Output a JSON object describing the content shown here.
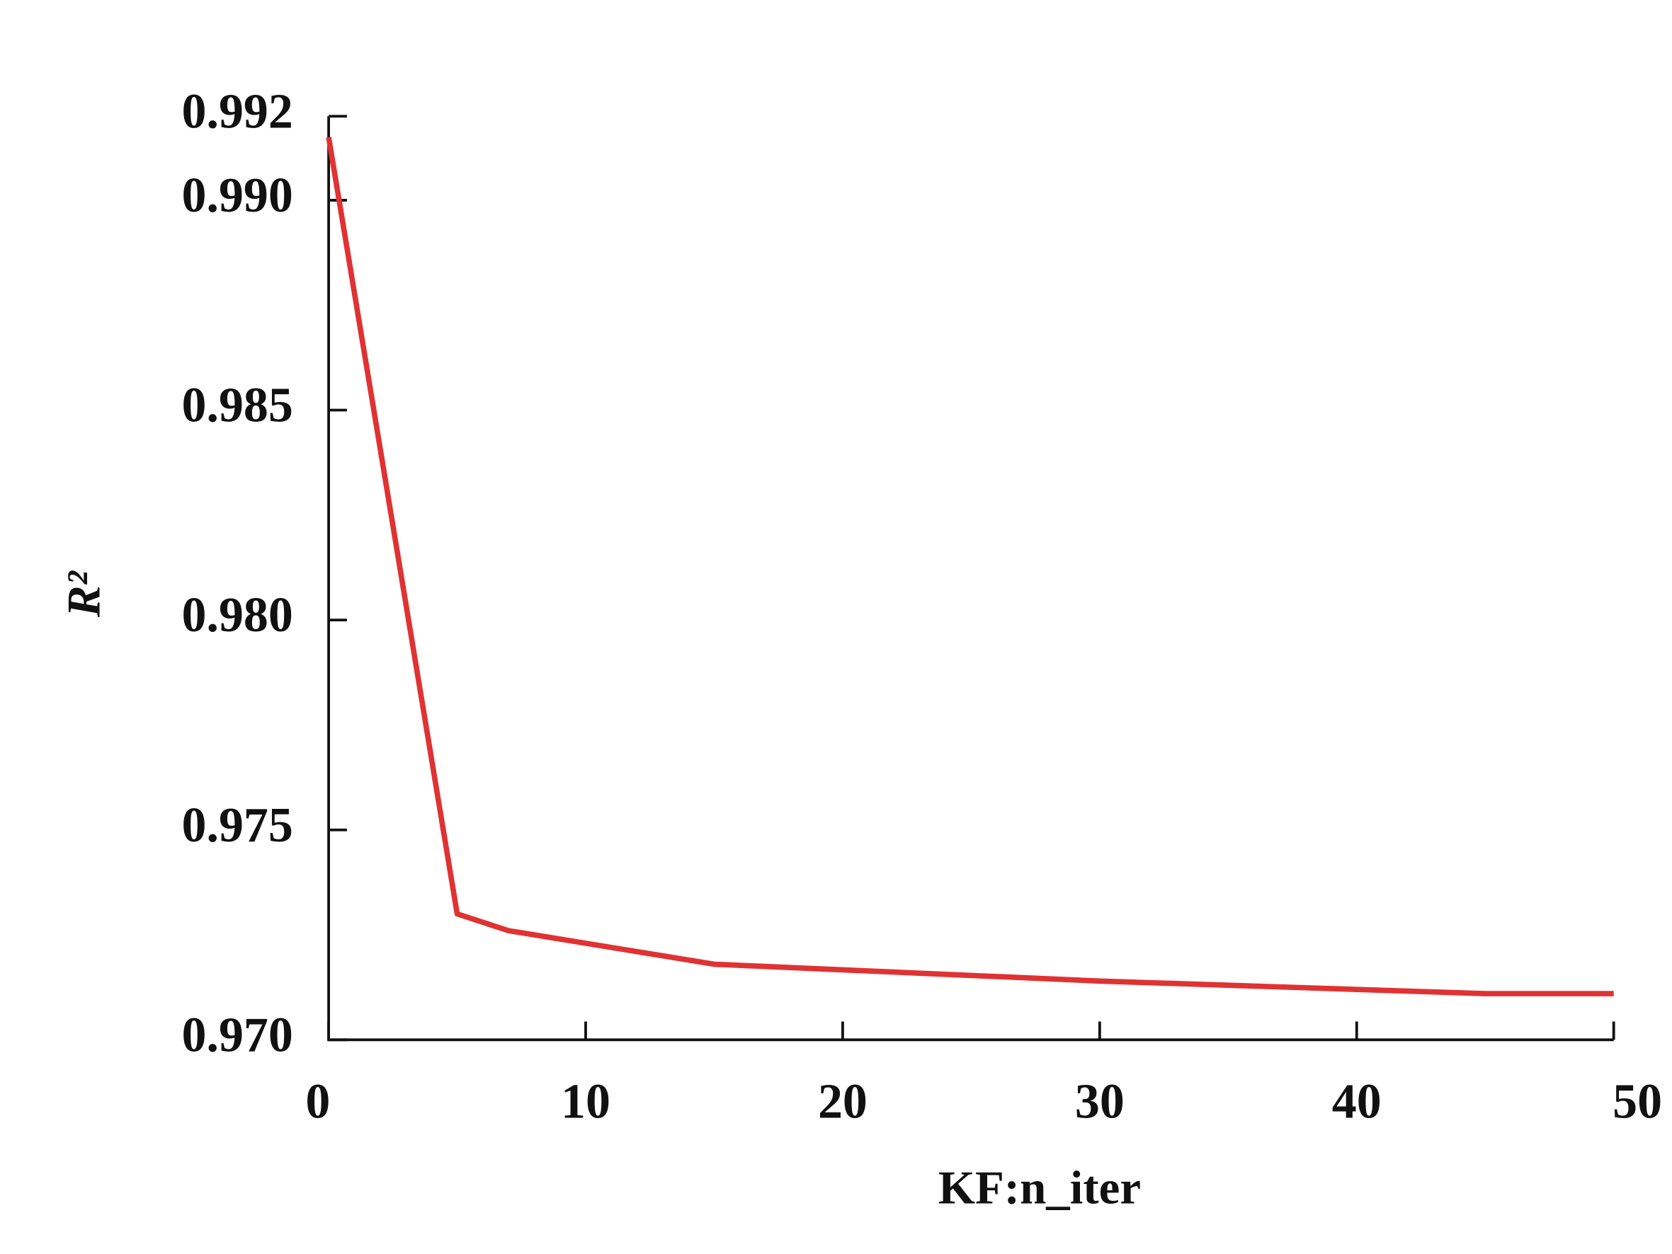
{
  "chart_data": {
    "type": "line",
    "x_label": "KF:n_iter",
    "y_label": "R²",
    "x": [
      0,
      5,
      7,
      15,
      30,
      45,
      50
    ],
    "series": [
      {
        "color": "#e03232",
        "values": [
          0.9915,
          0.973,
          0.9726,
          0.9718,
          0.9714,
          0.9711,
          0.9711
        ]
      }
    ],
    "xlim": [
      0,
      50
    ],
    "xticks": [
      0,
      10,
      20,
      30,
      40,
      50
    ],
    "ylim": [
      0.97,
      0.992
    ],
    "yticks": [
      {
        "value": 0.97,
        "label": "0.970"
      },
      0.975,
      {
        "value": 0.98,
        "label": "0.980"
      },
      0.985,
      {
        "value": 0.99,
        "label": "0.990"
      },
      0.992
    ]
  }
}
